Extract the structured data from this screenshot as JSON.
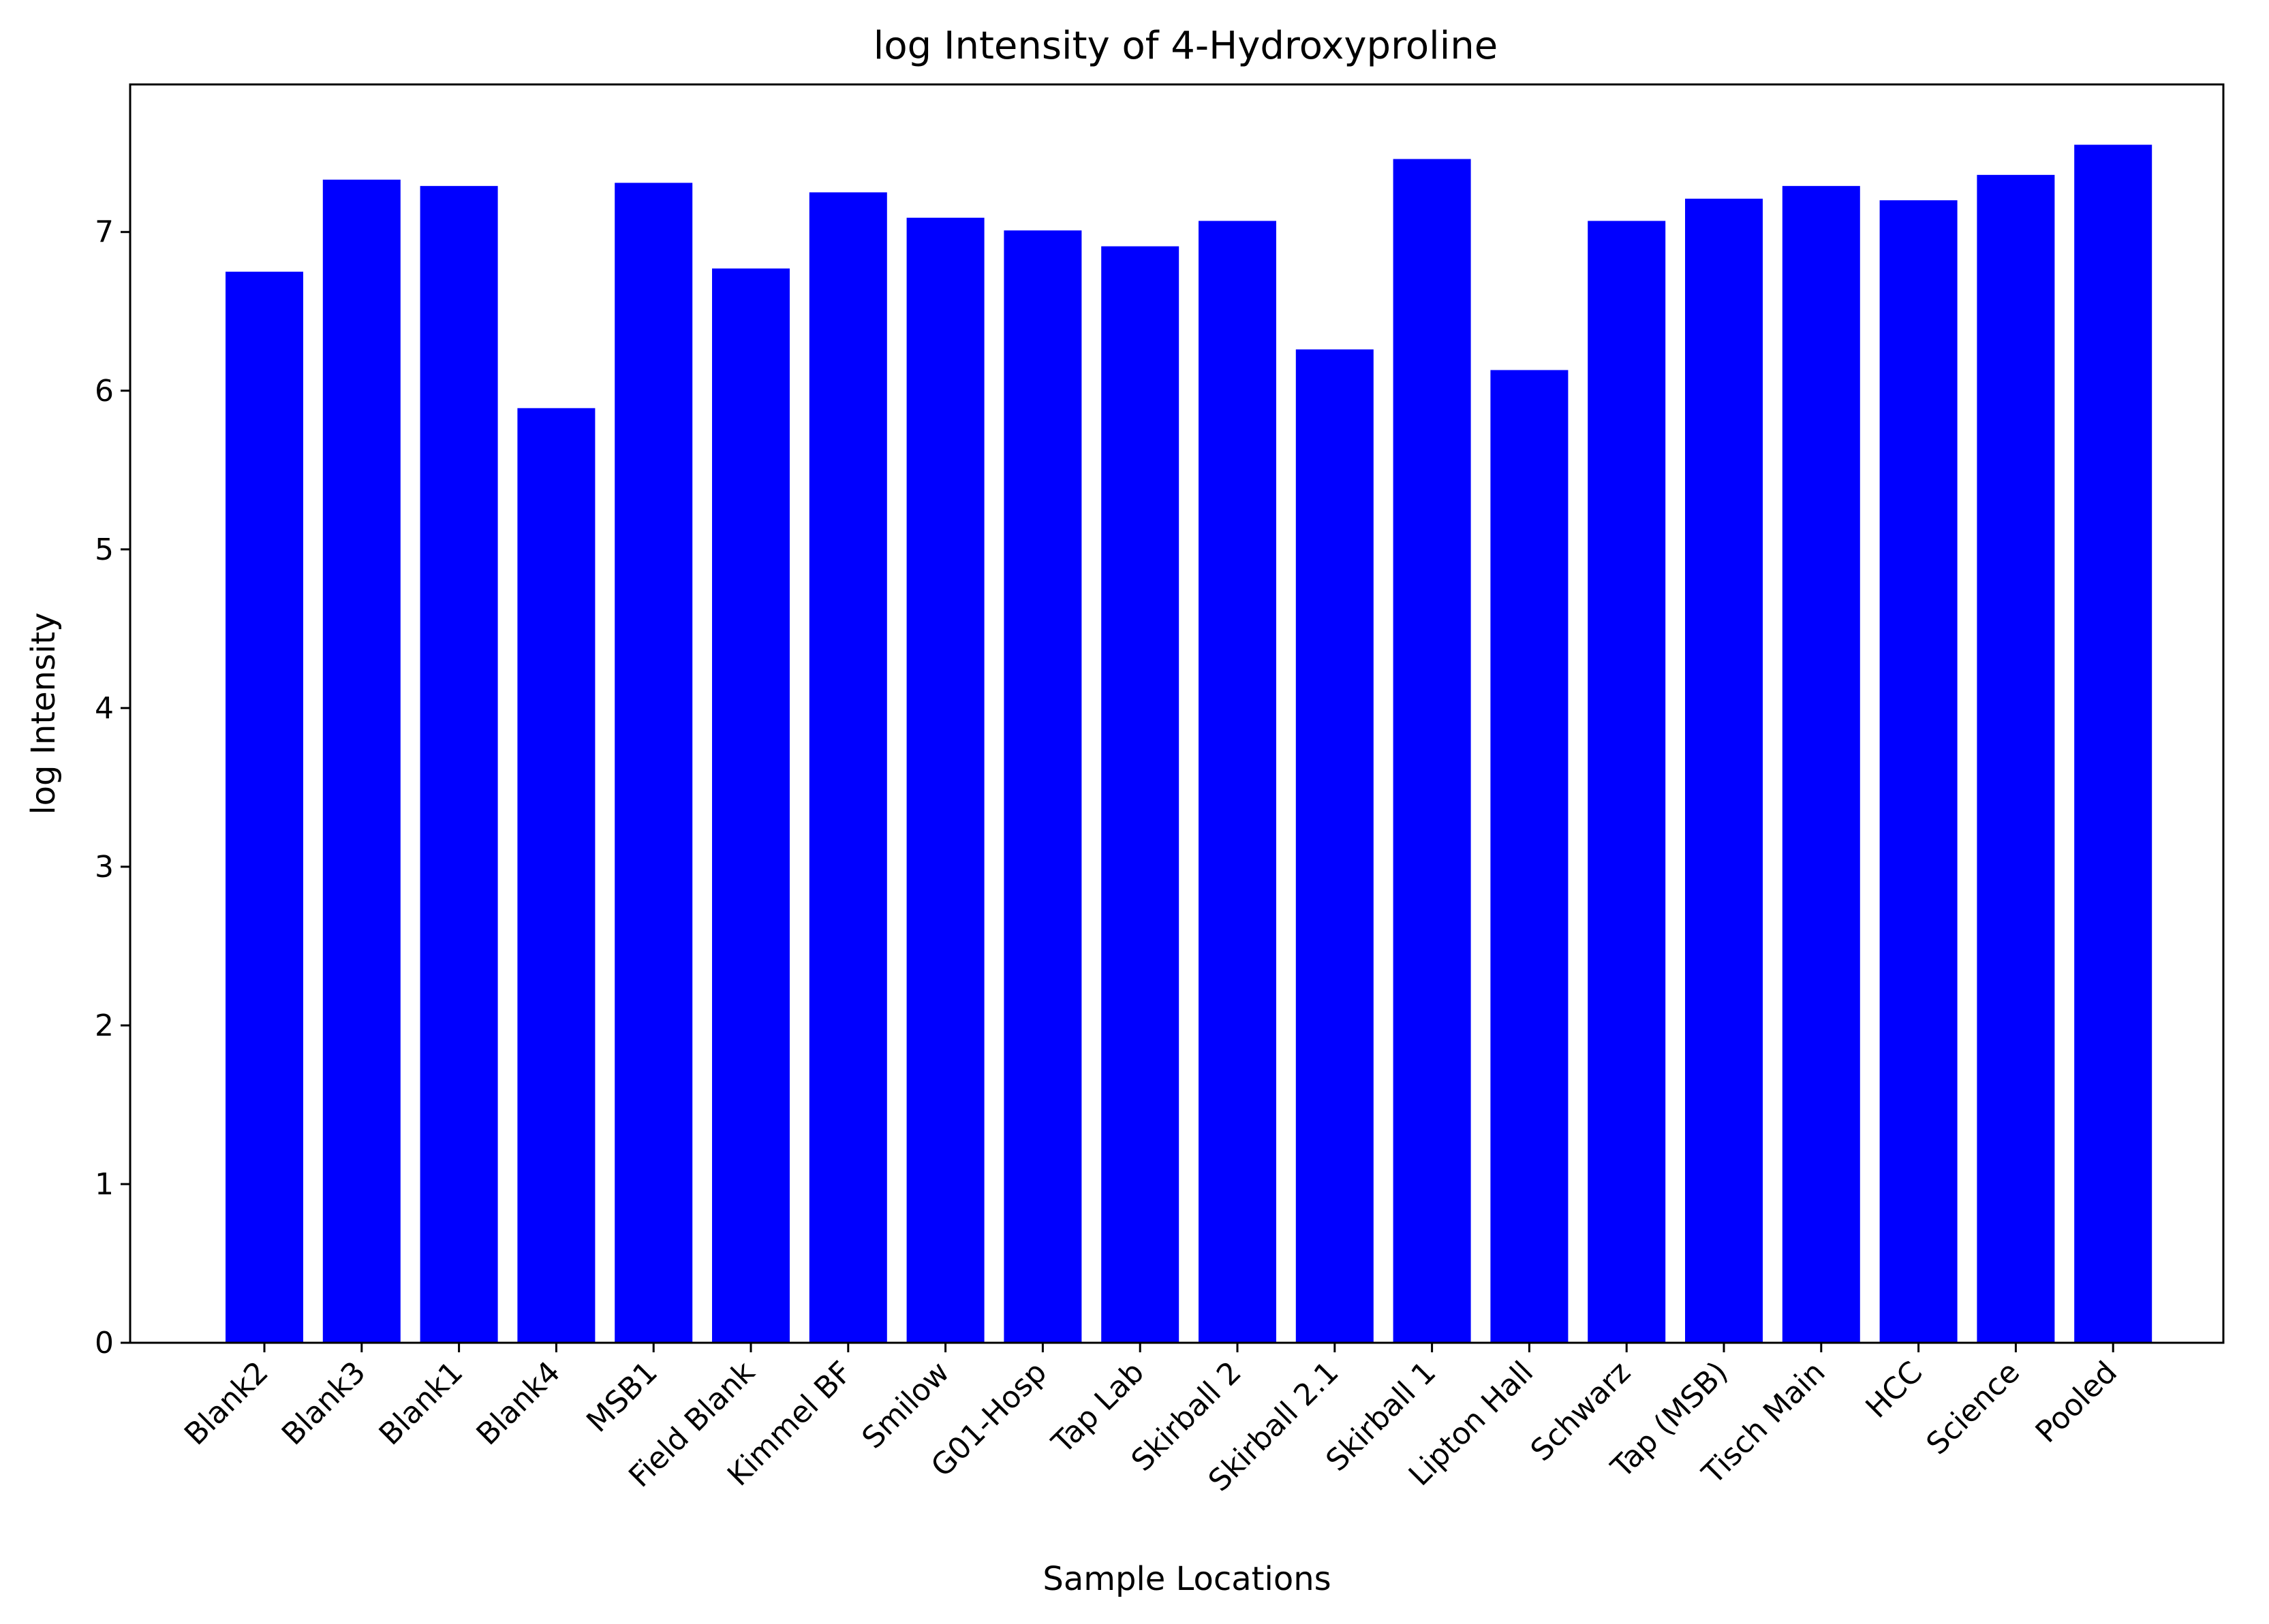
{
  "chart_data": {
    "type": "bar",
    "title": "log Intensity of 4-Hydroxyproline",
    "xlabel": "Sample Locations",
    "ylabel": "log Intensity",
    "categories": [
      "Blank2",
      "Blank3",
      "Blank1",
      "Blank4",
      "MSB1",
      "Field Blank",
      "Kimmel BF",
      "Smilow",
      "G01-Hosp",
      "Tap Lab",
      "Skirball 2",
      "Skirball 2.1",
      "Skirball 1",
      "Lipton Hall",
      "Schwarz",
      "Tap (MSB)",
      "Tisch Main",
      "HCC",
      "Science",
      "Pooled"
    ],
    "values": [
      6.75,
      7.33,
      7.29,
      5.89,
      7.31,
      6.77,
      7.25,
      7.09,
      7.01,
      6.91,
      7.07,
      6.26,
      7.46,
      6.13,
      7.07,
      7.21,
      7.29,
      7.2,
      7.36,
      7.55
    ],
    "yticks": [
      "0",
      "1",
      "2",
      "3",
      "4",
      "5",
      "6",
      "7"
    ],
    "ylim": [
      0,
      7.93
    ],
    "bar_color": "#0000ff",
    "grid": false,
    "legend": false
  }
}
